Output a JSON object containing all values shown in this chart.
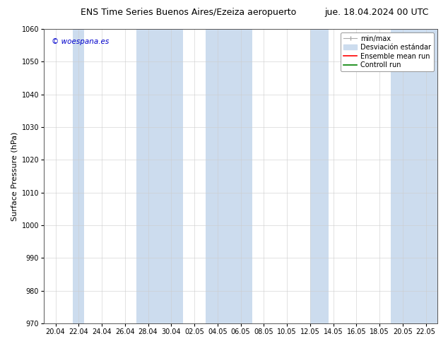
{
  "title_left": "ENS Time Series Buenos Aires/Ezeiza aeropuerto",
  "title_right": "jue. 18.04.2024 00 UTC",
  "ylabel": "Surface Pressure (hPa)",
  "watermark": "© woespana.es",
  "watermark_color": "#0000cc",
  "ylim": [
    970,
    1060
  ],
  "yticks": [
    970,
    980,
    990,
    1000,
    1010,
    1020,
    1030,
    1040,
    1050,
    1060
  ],
  "xtick_labels": [
    "20.04",
    "22.04",
    "24.04",
    "26.04",
    "28.04",
    "30.04",
    "02.05",
    "04.05",
    "06.05",
    "08.05",
    "10.05",
    "12.05",
    "14.05",
    "16.05",
    "18.05",
    "20.05",
    "22.05"
  ],
  "bg_color": "#ffffff",
  "plot_bg_color": "#ffffff",
  "shaded_band_color": "#ccdcee",
  "shaded_band_alpha": 1.0,
  "legend_label_1": "min/max",
  "legend_label_2": "Desviación estándar",
  "legend_label_3": "Ensemble mean run",
  "legend_label_4": "Controll run",
  "legend_color_1": "#aaaaaa",
  "legend_color_2": "#ccdcee",
  "legend_color_3": "#ff0000",
  "legend_color_4": "#008000",
  "band_ranges": [
    [
      0.75,
      1.25
    ],
    [
      3.5,
      5.5
    ],
    [
      6.5,
      8.5
    ],
    [
      11.0,
      11.8
    ],
    [
      14.5,
      16.5
    ]
  ],
  "title_fontsize": 9,
  "tick_fontsize": 7,
  "label_fontsize": 8,
  "legend_fontsize": 7
}
